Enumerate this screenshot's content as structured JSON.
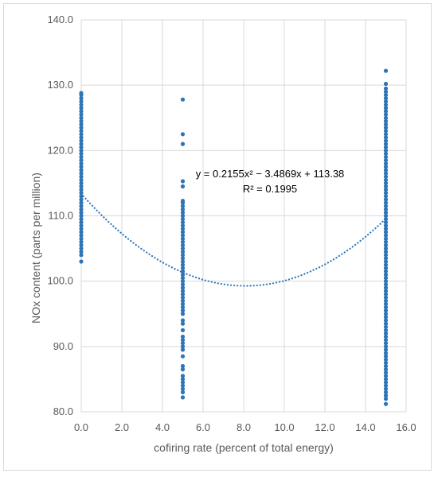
{
  "chart_data": {
    "type": "scatter",
    "title": "",
    "xlabel": "cofiring rate (percent of total energy)",
    "ylabel": "NOx content (parts per million)",
    "xlim": [
      0,
      16
    ],
    "ylim": [
      80,
      140
    ],
    "x_ticks": [
      "0.0",
      "2.0",
      "4.0",
      "6.0",
      "8.0",
      "10.0",
      "12.0",
      "14.0",
      "16.0"
    ],
    "y_ticks": [
      "80.0",
      "90.0",
      "100.0",
      "110.0",
      "120.0",
      "130.0",
      "140.0"
    ],
    "grid": true,
    "marker_color": "#2e75b6",
    "series": [
      {
        "x": 0.0,
        "values": [
          103.0,
          104.0,
          104.5,
          105.0,
          105.5,
          106.0,
          106.5,
          107.0,
          107.5,
          108.0,
          108.5,
          109.0,
          109.5,
          110.0,
          110.5,
          111.0,
          111.5,
          112.0,
          112.5,
          113.0,
          113.5,
          114.0,
          114.5,
          115.0,
          115.5,
          116.0,
          116.5,
          117.0,
          117.5,
          118.0,
          118.5,
          119.0,
          119.5,
          120.0,
          120.5,
          121.0,
          121.5,
          122.0,
          122.5,
          123.0,
          123.5,
          124.0,
          124.5,
          125.0,
          125.5,
          126.0,
          126.5,
          127.0,
          127.5,
          128.0,
          128.5,
          128.8
        ]
      },
      {
        "x": 5.0,
        "values": [
          82.2,
          83.0,
          83.5,
          84.0,
          84.5,
          85.0,
          85.5,
          86.5,
          87.0,
          88.5,
          89.5,
          90.0,
          90.5,
          91.0,
          91.5,
          92.5,
          93.5,
          94.0,
          95.0,
          95.5,
          96.0,
          96.5,
          97.0,
          97.5,
          98.0,
          98.5,
          99.0,
          99.5,
          100.0,
          100.5,
          101.0,
          101.5,
          102.0,
          102.5,
          103.0,
          103.5,
          104.0,
          104.5,
          105.0,
          105.5,
          106.0,
          106.5,
          107.0,
          107.5,
          108.0,
          108.5,
          109.0,
          109.5,
          110.0,
          110.5,
          111.0,
          111.5,
          112.0,
          112.3,
          114.5,
          115.3,
          121.0,
          122.5,
          127.8
        ]
      },
      {
        "x": 15.0,
        "values": [
          81.2,
          82.0,
          82.5,
          83.0,
          83.5,
          84.0,
          84.5,
          85.0,
          85.5,
          86.0,
          86.5,
          87.0,
          87.5,
          88.0,
          88.5,
          89.0,
          89.5,
          90.0,
          90.5,
          91.0,
          91.5,
          92.0,
          92.5,
          93.0,
          93.5,
          94.0,
          94.5,
          95.0,
          95.5,
          96.0,
          96.5,
          97.0,
          97.5,
          98.0,
          98.5,
          99.0,
          99.5,
          100.0,
          100.5,
          101.0,
          101.5,
          102.0,
          102.5,
          103.0,
          103.5,
          104.0,
          104.5,
          105.0,
          105.5,
          106.0,
          106.5,
          107.0,
          107.5,
          108.0,
          108.5,
          109.0,
          109.5,
          110.0,
          110.5,
          111.0,
          111.5,
          112.0,
          112.5,
          113.0,
          113.5,
          114.0,
          114.5,
          115.0,
          115.5,
          116.0,
          116.5,
          117.0,
          117.5,
          118.0,
          118.5,
          119.0,
          119.5,
          120.0,
          120.5,
          121.0,
          121.5,
          122.0,
          122.5,
          123.0,
          123.5,
          124.0,
          124.5,
          125.0,
          125.5,
          126.0,
          126.5,
          127.0,
          127.5,
          128.0,
          128.5,
          129.0,
          129.5,
          130.2,
          132.2
        ]
      }
    ],
    "trendline": {
      "type": "polynomial",
      "a": 0.2155,
      "b": -3.4869,
      "c": 113.38,
      "x_range": [
        0,
        15
      ],
      "equation": "y = 0.2155x² − 3.4869x + 113.38",
      "r_squared": "R² = 0.1995"
    }
  }
}
